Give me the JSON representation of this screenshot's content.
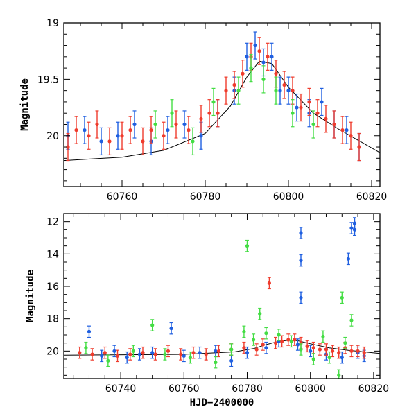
{
  "colors": {
    "blue": "#1f5fe0",
    "red": "#ef3b2c",
    "green": "#44dd44",
    "model": "#000000",
    "axes": "#000000"
  },
  "chart_data": [
    {
      "type": "scatter",
      "title": "",
      "xlabel": "",
      "ylabel": "Magnitude",
      "xlim": [
        60746,
        60822
      ],
      "ylim": [
        20.45,
        19.0
      ],
      "y_inverted": true,
      "error_bars": true,
      "xticks": [
        60760,
        60780,
        60800,
        60820
      ],
      "yticks": [
        19,
        19.5,
        20
      ],
      "xtick_labels": [
        "60760",
        "60780",
        "60800",
        "60820"
      ],
      "ytick_labels": [
        "19",
        "19.5",
        "20"
      ],
      "series": [
        {
          "color": "blue",
          "x": [
            60747,
            60751,
            60755,
            60759,
            60763,
            60767,
            60771,
            60775,
            60779,
            60783,
            60787,
            60790,
            60792,
            60794,
            60796,
            60798,
            60800,
            60802,
            60805,
            60808,
            60811,
            60814,
            60817
          ],
          "y": [
            20.0,
            19.95,
            20.05,
            20.0,
            19.9,
            20.05,
            19.95,
            19.9,
            20.0,
            19.8,
            19.6,
            19.3,
            19.2,
            19.35,
            19.3,
            19.6,
            19.6,
            19.75,
            19.8,
            19.7,
            19.9,
            19.95,
            20.1
          ]
        },
        {
          "color": "red",
          "x": [
            60747,
            60749,
            60752,
            60754,
            60757,
            60760,
            60762,
            60765,
            60767,
            60770,
            60773,
            60776,
            60779,
            60781,
            60783,
            60785,
            60787,
            60789,
            60791,
            60793,
            60795,
            60797,
            60799,
            60801,
            60803,
            60805,
            60807,
            60809,
            60811,
            60813,
            60815,
            60817
          ],
          "y": [
            20.1,
            19.95,
            20.0,
            19.9,
            20.05,
            20.0,
            19.95,
            20.05,
            19.95,
            20.0,
            19.9,
            19.95,
            19.85,
            19.8,
            19.8,
            19.6,
            19.55,
            19.45,
            19.3,
            19.25,
            19.3,
            19.45,
            19.55,
            19.6,
            19.75,
            19.7,
            19.8,
            19.85,
            19.9,
            19.95,
            20.0,
            20.1
          ]
        },
        {
          "color": "green",
          "x": [
            60768,
            60772,
            60777,
            60782,
            60788,
            60791,
            60794,
            60797,
            60801,
            60806
          ],
          "y": [
            19.9,
            19.8,
            20.05,
            19.7,
            19.6,
            19.4,
            19.5,
            19.6,
            19.8,
            19.9
          ]
        }
      ],
      "model_curve": {
        "x": [
          60746,
          60760,
          60770,
          60780,
          60786,
          60790,
          60793,
          60796,
          60800,
          60806,
          60812,
          60822
        ],
        "y": [
          20.22,
          20.19,
          20.13,
          19.98,
          19.74,
          19.48,
          19.34,
          19.36,
          19.57,
          19.8,
          19.94,
          20.15
        ]
      }
    },
    {
      "type": "scatter",
      "title": "",
      "xlabel": "HJD−2400000",
      "ylabel": "Magnitude",
      "xlim": [
        60722,
        60822
      ],
      "ylim": [
        21.7,
        11.5
      ],
      "y_inverted": true,
      "error_bars": true,
      "xticks": [
        60740,
        60760,
        60780,
        60800,
        60820
      ],
      "yticks": [
        12,
        14,
        16,
        18,
        20
      ],
      "xtick_labels": [
        "60740",
        "60760",
        "60780",
        "60800",
        "60820"
      ],
      "ytick_labels": [
        "12",
        "14",
        "16",
        "18",
        "20"
      ],
      "series": [
        {
          "color": "blue",
          "x": [
            60730,
            60734,
            60738,
            60742,
            60746,
            60750,
            60756,
            60760,
            60765,
            60770,
            60775,
            60780,
            60786,
            60790,
            60796,
            60797,
            60797,
            60797,
            60800,
            60805,
            60810,
            60812,
            60813,
            60814,
            60814,
            60815,
            60817
          ],
          "y": [
            18.8,
            20.3,
            20.0,
            20.4,
            20.2,
            20.1,
            18.6,
            20.3,
            20.1,
            20.0,
            20.6,
            20.1,
            19.8,
            19.4,
            19.6,
            12.7,
            14.4,
            16.7,
            20.0,
            20.2,
            20.4,
            14.3,
            12.4,
            12.1,
            12.5,
            20.1,
            20.3
          ]
        },
        {
          "color": "red",
          "x": [
            60727,
            60731,
            60735,
            60739,
            60743,
            60747,
            60751,
            60755,
            60759,
            60763,
            60767,
            60771,
            60775,
            60779,
            60783,
            60785,
            60787,
            60789,
            60791,
            60793,
            60795,
            60797,
            60799,
            60801,
            60803,
            60805,
            60807,
            60809,
            60811,
            60813,
            60815,
            60817
          ],
          "y": [
            20.1,
            20.2,
            20.1,
            20.3,
            20.2,
            20.1,
            20.2,
            20.0,
            20.2,
            20.1,
            20.2,
            20.0,
            19.9,
            19.8,
            19.9,
            19.6,
            15.8,
            19.5,
            19.4,
            19.3,
            19.3,
            19.5,
            19.7,
            19.8,
            19.9,
            19.9,
            20.0,
            20.1,
            19.8,
            20.0,
            20.0,
            20.1
          ]
        },
        {
          "color": "green",
          "x": [
            60729,
            60736,
            60744,
            60750,
            60754,
            60762,
            60770,
            60775,
            60779,
            60780,
            60782,
            60784,
            60786,
            60790,
            60794,
            60797,
            60801,
            60804,
            60806,
            60809,
            60810,
            60811,
            60813
          ],
          "y": [
            19.8,
            20.6,
            20.0,
            18.4,
            20.2,
            20.4,
            20.7,
            19.9,
            18.8,
            13.5,
            19.3,
            17.7,
            18.9,
            19.0,
            19.4,
            19.9,
            20.5,
            19.1,
            20.4,
            21.5,
            16.7,
            19.5,
            18.1
          ]
        }
      ],
      "model_curve": {
        "x": [
          60722,
          60760,
          60776,
          60782,
          60786,
          60790,
          60793,
          60796,
          60800,
          60806,
          60812,
          60822
        ],
        "y": [
          20.25,
          20.2,
          20.05,
          19.85,
          19.6,
          19.4,
          19.34,
          19.36,
          19.55,
          19.8,
          19.95,
          20.15
        ]
      }
    }
  ]
}
